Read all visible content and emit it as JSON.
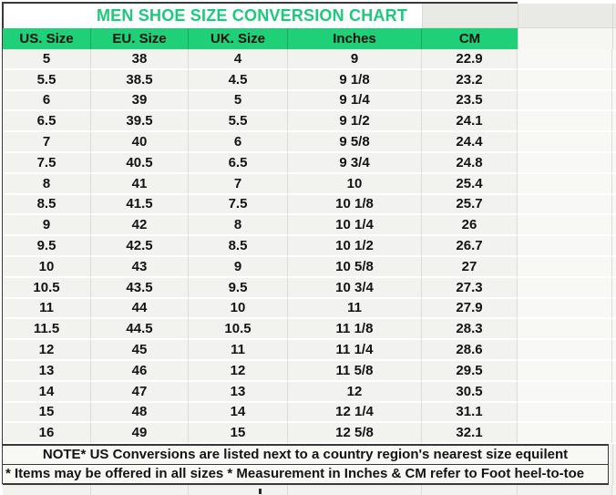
{
  "chart_data": {
    "type": "table",
    "title": "MEN SHOE SIZE CONVERSION CHART",
    "columns": [
      "US. Size",
      "EU. Size",
      "UK. Size",
      "Inches",
      "CM"
    ],
    "rows": [
      [
        "5",
        "38",
        "4",
        "9",
        "22.9"
      ],
      [
        "5.5",
        "38.5",
        "4.5",
        "9 1/8",
        "23.2"
      ],
      [
        "6",
        "39",
        "5",
        "9 1/4",
        "23.5"
      ],
      [
        "6.5",
        "39.5",
        "5.5",
        "9 1/2",
        "24.1"
      ],
      [
        "7",
        "40",
        "6",
        "9 5/8",
        "24.4"
      ],
      [
        "7.5",
        "40.5",
        "6.5",
        "9 3/4",
        "24.8"
      ],
      [
        "8",
        "41",
        "7",
        "10",
        "25.4"
      ],
      [
        "8.5",
        "41.5",
        "7.5",
        "10 1/8",
        "25.7"
      ],
      [
        "9",
        "42",
        "8",
        "10 1/4",
        "26"
      ],
      [
        "9.5",
        "42.5",
        "8.5",
        "10 1/2",
        "26.7"
      ],
      [
        "10",
        "43",
        "9",
        "10 5/8",
        "27"
      ],
      [
        "10.5",
        "43.5",
        "9.5",
        "10 3/4",
        "27.3"
      ],
      [
        "11",
        "44",
        "10",
        "11",
        "27.9"
      ],
      [
        "11.5",
        "44.5",
        "10.5",
        "11 1/8",
        "28.3"
      ],
      [
        "12",
        "45",
        "11",
        "11 1/4",
        "28.6"
      ],
      [
        "13",
        "46",
        "12",
        "11 5/8",
        "29.5"
      ],
      [
        "14",
        "47",
        "13",
        "12",
        "30.5"
      ],
      [
        "15",
        "48",
        "14",
        "12 1/4",
        "31.1"
      ],
      [
        "16",
        "49",
        "15",
        "12 5/8",
        "32.1"
      ]
    ],
    "notes": [
      "NOTE* US Conversions are listed next to a country region's nearest size equilent",
      "* Items may be offered in all sizes * Measurement in Inches & CM refer to Foot heel-to-toe"
    ],
    "legend_position": "none",
    "grid": true
  },
  "colors": {
    "header_green": "#1fd078",
    "title_green": "#1dc97b",
    "cell_bg": "#f2f2ef",
    "frame_dark": "#3a3a3a"
  }
}
